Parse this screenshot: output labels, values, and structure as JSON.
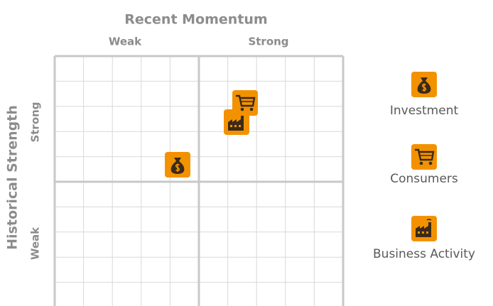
{
  "header": {
    "title": "Recent Momentum",
    "x_labels": [
      "Weak",
      "Strong"
    ]
  },
  "side": {
    "title": "Historical Strength",
    "y_labels": [
      "Strong",
      "Weak"
    ]
  },
  "legend": {
    "items": [
      "Investment",
      "Consumers",
      "Business Activity"
    ]
  }
}
